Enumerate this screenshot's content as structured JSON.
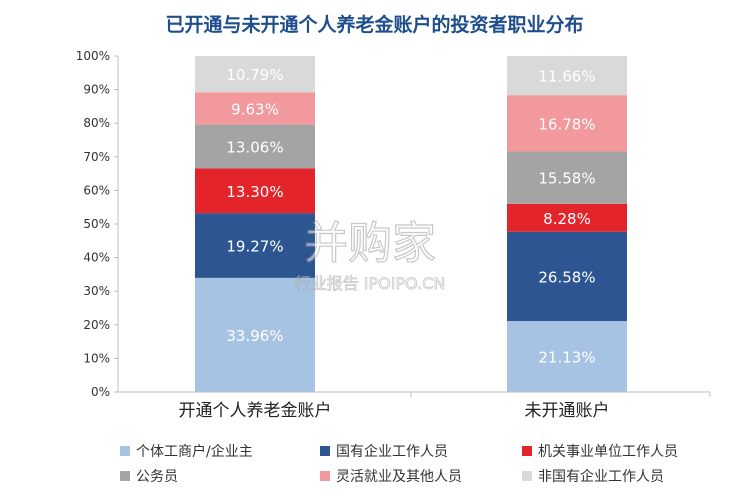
{
  "title": "已开通与未开通个人养老金账户的投资者职业分布",
  "watermark": {
    "main": "并购家",
    "sub": "行业报告 IPOIPO.CN"
  },
  "chart_data": {
    "type": "bar",
    "stacked": true,
    "categories": [
      "开通个人养老金账户",
      "未开通账户"
    ],
    "y_ticks": [
      "0%",
      "10%",
      "20%",
      "30%",
      "40%",
      "50%",
      "60%",
      "70%",
      "80%",
      "90%",
      "100%"
    ],
    "ylim": [
      0,
      100
    ],
    "legend_position": "bottom",
    "series": [
      {
        "name": "个体工商户/企业主",
        "color": "#a6c3e3",
        "values": [
          33.96,
          21.13
        ],
        "labels": [
          "33.96%",
          "21.13%"
        ]
      },
      {
        "name": "国有企业工作人员",
        "color": "#2c5591",
        "values": [
          19.27,
          26.58
        ],
        "labels": [
          "19.27%",
          "26.58%"
        ]
      },
      {
        "name": "机关事业单位工作人员",
        "color": "#e3252b",
        "values": [
          13.3,
          8.28
        ],
        "labels": [
          "13.30%",
          "8.28%"
        ]
      },
      {
        "name": "公务员",
        "color": "#a4a4a4",
        "values": [
          13.06,
          15.58
        ],
        "labels": [
          "13.06%",
          "15.58%"
        ]
      },
      {
        "name": "灵活就业及其他人员",
        "color": "#f2999d",
        "values": [
          9.63,
          16.78
        ],
        "labels": [
          "9.63%",
          "16.78%"
        ]
      },
      {
        "name": "非国有企业工作人员",
        "color": "#d9d9d9",
        "values": [
          10.79,
          11.66
        ],
        "labels": [
          "10.79%",
          "11.66%"
        ]
      }
    ]
  }
}
